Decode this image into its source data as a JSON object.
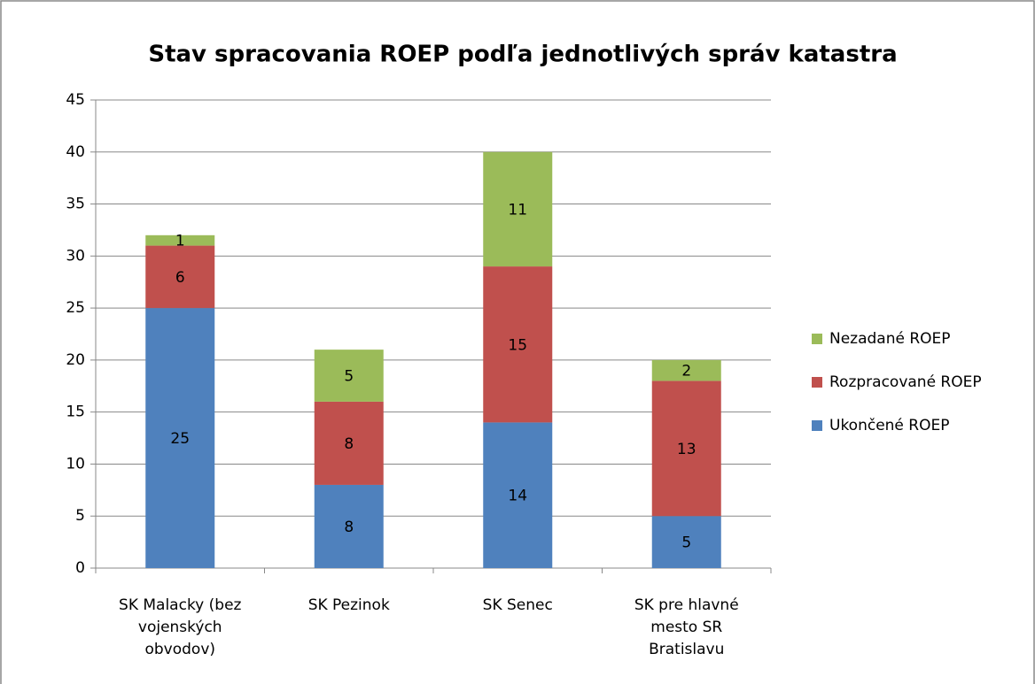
{
  "chart_data": {
    "type": "stacked_bar",
    "title": "Stav spracovania ROEP podľa jednotlivých správ katastra",
    "categories": [
      "SK Malacky (bez vojenských obvodov)",
      "SK Pezinok",
      "SK Senec",
      "SK pre hlavné mesto SR Bratislavu"
    ],
    "series": [
      {
        "name": "Ukončené ROEP",
        "color": "#4f81bd",
        "values": [
          25,
          8,
          14,
          5
        ]
      },
      {
        "name": "Rozpracované ROEP",
        "color": "#c0504d",
        "values": [
          6,
          8,
          15,
          13
        ]
      },
      {
        "name": "Nezadané ROEP",
        "color": "#9bbb59",
        "values": [
          1,
          5,
          11,
          2
        ]
      }
    ],
    "ylim": [
      0,
      45
    ],
    "yticks": [
      0,
      5,
      10,
      15,
      20,
      25,
      30,
      35,
      40,
      45
    ],
    "grid": true,
    "legend": "right"
  }
}
